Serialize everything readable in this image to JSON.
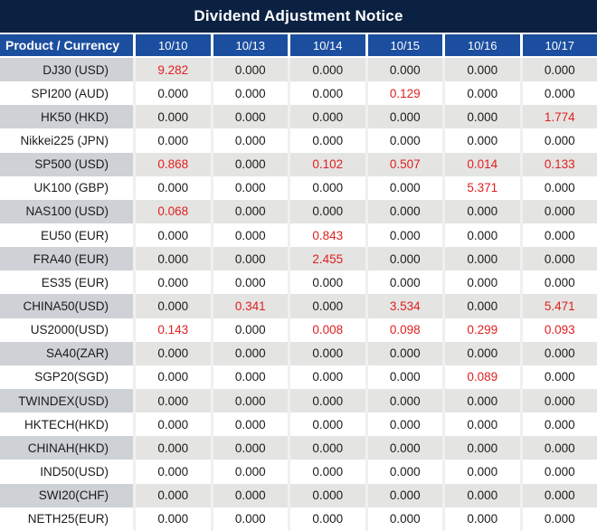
{
  "title": "Dividend Adjustment Notice",
  "colors": {
    "title_bar": "#0b2142",
    "header_blue": "#1b4e9e",
    "gray_row_label": "#ced1d5",
    "gray_row_data": "#e4e4e2",
    "negative_red": "#e02020",
    "text": "#1b1b1b"
  },
  "table": {
    "product_header": "Product / Currency",
    "date_headers": [
      "10/10",
      "10/13",
      "10/14",
      "10/15",
      "10/16",
      "10/17"
    ],
    "rows": [
      {
        "product": "DJ30 (USD)",
        "values": [
          "9.282",
          "0.000",
          "0.000",
          "0.000",
          "0.000",
          "0.000"
        ],
        "red": [
          true,
          false,
          false,
          false,
          false,
          false
        ]
      },
      {
        "product": "SPI200 (AUD)",
        "values": [
          "0.000",
          "0.000",
          "0.000",
          "0.129",
          "0.000",
          "0.000"
        ],
        "red": [
          false,
          false,
          false,
          true,
          false,
          false
        ]
      },
      {
        "product": "HK50 (HKD)",
        "values": [
          "0.000",
          "0.000",
          "0.000",
          "0.000",
          "0.000",
          "1.774"
        ],
        "red": [
          false,
          false,
          false,
          false,
          false,
          true
        ]
      },
      {
        "product": "Nikkei225 (JPN)",
        "values": [
          "0.000",
          "0.000",
          "0.000",
          "0.000",
          "0.000",
          "0.000"
        ],
        "red": [
          false,
          false,
          false,
          false,
          false,
          false
        ]
      },
      {
        "product": "SP500 (USD)",
        "values": [
          "0.868",
          "0.000",
          "0.102",
          "0.507",
          "0.014",
          "0.133"
        ],
        "red": [
          true,
          false,
          true,
          true,
          true,
          true
        ]
      },
      {
        "product": "UK100 (GBP)",
        "values": [
          "0.000",
          "0.000",
          "0.000",
          "0.000",
          "5.371",
          "0.000"
        ],
        "red": [
          false,
          false,
          false,
          false,
          true,
          false
        ]
      },
      {
        "product": "NAS100 (USD)",
        "values": [
          "0.068",
          "0.000",
          "0.000",
          "0.000",
          "0.000",
          "0.000"
        ],
        "red": [
          true,
          false,
          false,
          false,
          false,
          false
        ]
      },
      {
        "product": "EU50 (EUR)",
        "values": [
          "0.000",
          "0.000",
          "0.843",
          "0.000",
          "0.000",
          "0.000"
        ],
        "red": [
          false,
          false,
          true,
          false,
          false,
          false
        ]
      },
      {
        "product": "FRA40 (EUR)",
        "values": [
          "0.000",
          "0.000",
          "2.455",
          "0.000",
          "0.000",
          "0.000"
        ],
        "red": [
          false,
          false,
          true,
          false,
          false,
          false
        ]
      },
      {
        "product": "ES35 (EUR)",
        "values": [
          "0.000",
          "0.000",
          "0.000",
          "0.000",
          "0.000",
          "0.000"
        ],
        "red": [
          false,
          false,
          false,
          false,
          false,
          false
        ]
      },
      {
        "product": "CHINA50(USD)",
        "values": [
          "0.000",
          "0.341",
          "0.000",
          "3.534",
          "0.000",
          "5.471"
        ],
        "red": [
          false,
          true,
          false,
          true,
          false,
          true
        ]
      },
      {
        "product": "US2000(USD)",
        "values": [
          "0.143",
          "0.000",
          "0.008",
          "0.098",
          "0.299",
          "0.093"
        ],
        "red": [
          true,
          false,
          true,
          true,
          true,
          true
        ]
      },
      {
        "product": "SA40(ZAR)",
        "values": [
          "0.000",
          "0.000",
          "0.000",
          "0.000",
          "0.000",
          "0.000"
        ],
        "red": [
          false,
          false,
          false,
          false,
          false,
          false
        ]
      },
      {
        "product": "SGP20(SGD)",
        "values": [
          "0.000",
          "0.000",
          "0.000",
          "0.000",
          "0.089",
          "0.000"
        ],
        "red": [
          false,
          false,
          false,
          false,
          true,
          false
        ]
      },
      {
        "product": "TWINDEX(USD)",
        "values": [
          "0.000",
          "0.000",
          "0.000",
          "0.000",
          "0.000",
          "0.000"
        ],
        "red": [
          false,
          false,
          false,
          false,
          false,
          false
        ]
      },
      {
        "product": "HKTECH(HKD)",
        "values": [
          "0.000",
          "0.000",
          "0.000",
          "0.000",
          "0.000",
          "0.000"
        ],
        "red": [
          false,
          false,
          false,
          false,
          false,
          false
        ]
      },
      {
        "product": "CHINAH(HKD)",
        "values": [
          "0.000",
          "0.000",
          "0.000",
          "0.000",
          "0.000",
          "0.000"
        ],
        "red": [
          false,
          false,
          false,
          false,
          false,
          false
        ]
      },
      {
        "product": "IND50(USD)",
        "values": [
          "0.000",
          "0.000",
          "0.000",
          "0.000",
          "0.000",
          "0.000"
        ],
        "red": [
          false,
          false,
          false,
          false,
          false,
          false
        ]
      },
      {
        "product": "SWI20(CHF)",
        "values": [
          "0.000",
          "0.000",
          "0.000",
          "0.000",
          "0.000",
          "0.000"
        ],
        "red": [
          false,
          false,
          false,
          false,
          false,
          false
        ]
      },
      {
        "product": "NETH25(EUR)",
        "values": [
          "0.000",
          "0.000",
          "0.000",
          "0.000",
          "0.000",
          "0.000"
        ],
        "red": [
          false,
          false,
          false,
          false,
          false,
          false
        ]
      }
    ]
  }
}
